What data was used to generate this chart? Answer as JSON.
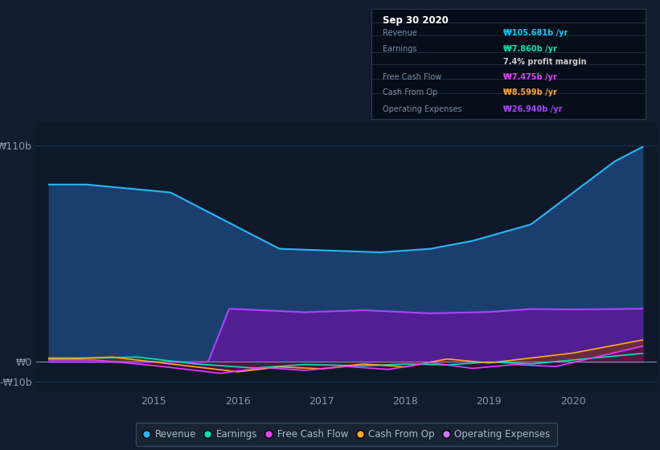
{
  "bg_color": "#131c2e",
  "plot_bg_color": "#16243a",
  "chart_area_bg": "#0d1929",
  "grid_color": "#1e3a5f",
  "box_bg": "#050d18",
  "box_border": "#2a3a50",
  "label_color": "#7a8fa8",
  "tick_color": "#8899aa",
  "title_box": {
    "date": "Sep 30 2020",
    "rows": [
      {
        "label": "Revenue",
        "value": "₩105.681b /yr",
        "value_color": "#00ccff",
        "bold": true
      },
      {
        "label": "Earnings",
        "value": "₩7.860b /yr",
        "value_color": "#00e5b0",
        "bold": true
      },
      {
        "label": "",
        "value": "7.4% profit margin",
        "value_color": "#dddddd",
        "bold": false
      },
      {
        "label": "Free Cash Flow",
        "value": "₩7.475b /yr",
        "value_color": "#e040fb",
        "bold": true
      },
      {
        "label": "Cash From Op",
        "value": "₩8.599b /yr",
        "value_color": "#ffa726",
        "bold": true
      },
      {
        "label": "Operating Expenses",
        "value": "₩26.940b /yr",
        "value_color": "#aa44ff",
        "bold": true
      }
    ]
  },
  "ylim": [
    -15,
    122
  ],
  "ytick_vals": [
    -10,
    0,
    110
  ],
  "ytick_labels": [
    "-₩10b",
    "₩0",
    "₩110b"
  ],
  "xlim": [
    2013.6,
    2021.0
  ],
  "xticks": [
    2015,
    2016,
    2017,
    2018,
    2019,
    2020
  ],
  "series": {
    "revenue": {
      "color": "#29b6f6",
      "fill_color": "#1a3f6f",
      "label": "Revenue",
      "dot_color": "#29b6f6"
    },
    "earnings": {
      "color": "#00e5b0",
      "fill_color": "#00896050",
      "label": "Earnings",
      "dot_color": "#00e5b0"
    },
    "fcf": {
      "color": "#e040fb",
      "fill_color": "#7b1fa250",
      "label": "Free Cash Flow",
      "dot_color": "#e040fb"
    },
    "cashop": {
      "color": "#ffa726",
      "fill_color": "#e65100",
      "label": "Cash From Op",
      "dot_color": "#ffa726"
    },
    "opex": {
      "color": "#aa44ff",
      "fill_color": "#5c1a9980",
      "label": "Operating Expenses",
      "dot_color": "#cc77ff"
    }
  },
  "legend_bg": "#1a2535",
  "legend_border": "#3a5070"
}
